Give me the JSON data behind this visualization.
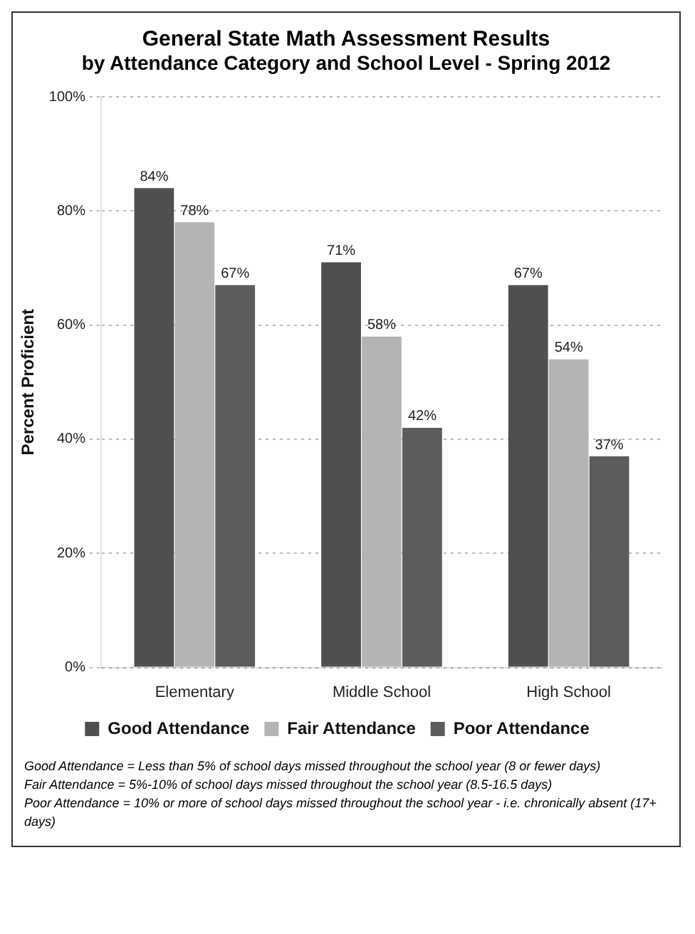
{
  "chart_data": {
    "type": "bar",
    "title": "General State Math Assessment Results",
    "subtitle": "by Attendance Category and School Level - Spring 2012",
    "ylabel": "Percent Proficient",
    "categories": [
      "Elementary",
      "Middle School",
      "High School"
    ],
    "series": [
      {
        "name": "Good Attendance",
        "color": "#4f4f4f",
        "values": [
          84,
          71,
          67
        ],
        "value_labels": [
          "84%",
          "71%",
          "67%"
        ]
      },
      {
        "name": "Fair Attendance",
        "color": "#b4b4b4",
        "values": [
          78,
          58,
          54
        ],
        "value_labels": [
          "78%",
          "58%",
          "54%"
        ]
      },
      {
        "name": "Poor Attendance",
        "color": "#5c5c5c",
        "values": [
          67,
          42,
          37
        ],
        "value_labels": [
          "67%",
          "42%",
          "37%"
        ]
      }
    ],
    "ylim": [
      0,
      100
    ],
    "yticks": [
      {
        "value": 0,
        "label": "0%"
      },
      {
        "value": 20,
        "label": "20%"
      },
      {
        "value": 40,
        "label": "40%"
      },
      {
        "value": 60,
        "label": "60%"
      },
      {
        "value": 80,
        "label": "80%"
      },
      {
        "value": 100,
        "label": "100%"
      }
    ],
    "grid": "y",
    "legend": "bottom",
    "annotations": [
      "Good Attendance = Less than 5% of school days missed throughout the school year (8 or fewer days)",
      "Fair Attendance = 5%-10% of school days missed throughout the school year (8.5-16.5 days)",
      "Poor Attendance = 10% or more of school days missed throughout the school year - i.e. chronically absent (17+ days)"
    ]
  }
}
